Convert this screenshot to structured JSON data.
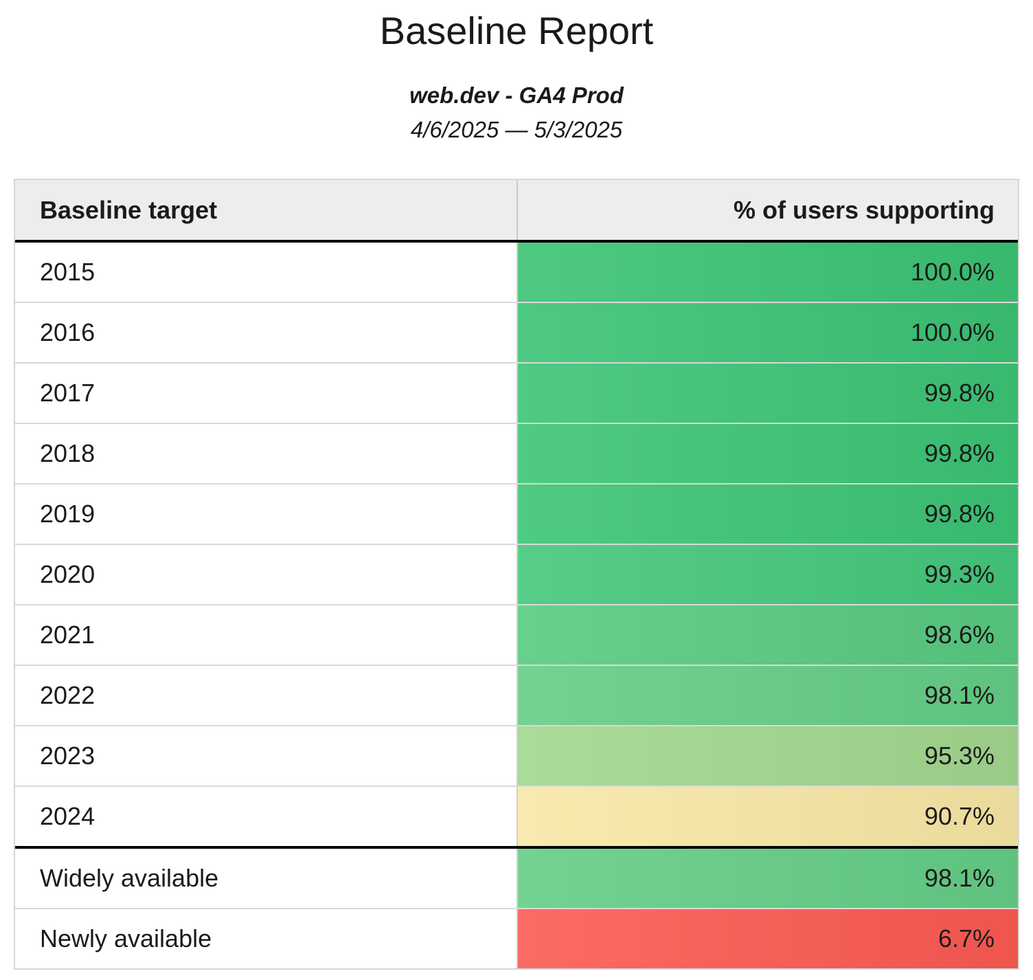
{
  "report": {
    "title": "Baseline Report",
    "subtitle": "web.dev - GA4 Prod",
    "date_range": "4/6/2025 — 5/3/2025"
  },
  "table": {
    "columns": [
      {
        "label": "Baseline target"
      },
      {
        "label": "% of users supporting"
      }
    ],
    "rows": [
      {
        "label": "2015",
        "value": "100.0%",
        "color": "#3ac374"
      },
      {
        "label": "2016",
        "value": "100.0%",
        "color": "#3ac374"
      },
      {
        "label": "2017",
        "value": "99.8%",
        "color": "#3bc475"
      },
      {
        "label": "2018",
        "value": "99.8%",
        "color": "#3bc475"
      },
      {
        "label": "2019",
        "value": "99.8%",
        "color": "#3bc475"
      },
      {
        "label": "2020",
        "value": "99.3%",
        "color": "#44c77a"
      },
      {
        "label": "2021",
        "value": "98.6%",
        "color": "#58ca80"
      },
      {
        "label": "2022",
        "value": "98.1%",
        "color": "#64cd86"
      },
      {
        "label": "2023",
        "value": "95.3%",
        "color": "#a2d78e"
      },
      {
        "label": "2024",
        "value": "90.7%",
        "color": "#f8e7a5"
      },
      {
        "label": "Widely available",
        "value": "98.1%",
        "color": "#64cd86"
      },
      {
        "label": "Newly available",
        "value": "6.7%",
        "color": "#fb5a52"
      }
    ]
  },
  "chart_data": {
    "type": "table",
    "title": "Baseline Report",
    "subtitle": "web.dev - GA4 Prod",
    "date_range": "4/6/2025 — 5/3/2025",
    "columns": [
      "Baseline target",
      "% of users supporting"
    ],
    "rows": [
      [
        "2015",
        100.0
      ],
      [
        "2016",
        100.0
      ],
      [
        "2017",
        99.8
      ],
      [
        "2018",
        99.8
      ],
      [
        "2019",
        99.8
      ],
      [
        "2020",
        99.3
      ],
      [
        "2021",
        98.6
      ],
      [
        "2022",
        98.1
      ],
      [
        "2023",
        95.3
      ],
      [
        "2024",
        90.7
      ],
      [
        "Widely available",
        98.1
      ],
      [
        "Newly available",
        6.7
      ]
    ],
    "value_unit": "%",
    "color_scale": "green (high support) to yellow to red (low support), conditional formatting on value column"
  }
}
